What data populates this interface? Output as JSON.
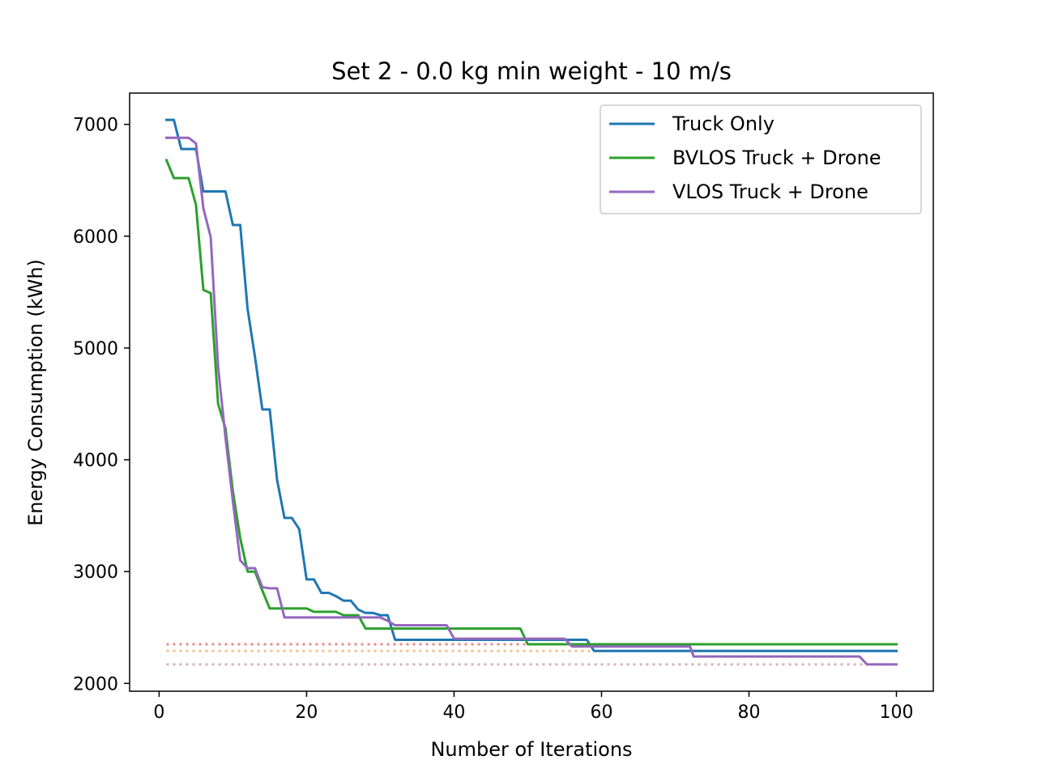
{
  "chart_data": {
    "type": "line",
    "title": "Set 2 - 0.0 kg min weight - 10 m/s",
    "xlabel": "Number of Iterations",
    "ylabel": "Energy Consumption (kWh)",
    "xlim": [
      -4,
      105
    ],
    "ylim": [
      1930,
      7280
    ],
    "xticks": [
      0,
      20,
      40,
      60,
      80,
      100
    ],
    "yticks": [
      2000,
      3000,
      4000,
      5000,
      6000,
      7000
    ],
    "legend_position": "top-right",
    "series": [
      {
        "name": "Truck Only",
        "color": "#1f77b4",
        "points": [
          [
            1,
            7040
          ],
          [
            2,
            7040
          ],
          [
            3,
            6780
          ],
          [
            4,
            6780
          ],
          [
            5,
            6780
          ],
          [
            6,
            6400
          ],
          [
            7,
            6400
          ],
          [
            8,
            6400
          ],
          [
            9,
            6400
          ],
          [
            10,
            6100
          ],
          [
            11,
            6100
          ],
          [
            12,
            5350
          ],
          [
            13,
            4920
          ],
          [
            14,
            4450
          ],
          [
            15,
            4450
          ],
          [
            16,
            3820
          ],
          [
            17,
            3480
          ],
          [
            18,
            3480
          ],
          [
            19,
            3380
          ],
          [
            20,
            2930
          ],
          [
            21,
            2930
          ],
          [
            22,
            2810
          ],
          [
            23,
            2810
          ],
          [
            24,
            2780
          ],
          [
            25,
            2740
          ],
          [
            26,
            2740
          ],
          [
            27,
            2660
          ],
          [
            28,
            2630
          ],
          [
            29,
            2630
          ],
          [
            30,
            2610
          ],
          [
            31,
            2610
          ],
          [
            32,
            2390
          ],
          [
            40,
            2390
          ],
          [
            58,
            2390
          ],
          [
            59,
            2290
          ],
          [
            100,
            2290
          ]
        ]
      },
      {
        "name": "BVLOS Truck + Drone",
        "color": "#2ca02c",
        "points": [
          [
            1,
            6680
          ],
          [
            2,
            6520
          ],
          [
            3,
            6520
          ],
          [
            4,
            6520
          ],
          [
            5,
            6280
          ],
          [
            6,
            5520
          ],
          [
            7,
            5490
          ],
          [
            8,
            4500
          ],
          [
            9,
            4280
          ],
          [
            10,
            3720
          ],
          [
            11,
            3300
          ],
          [
            12,
            3000
          ],
          [
            13,
            3000
          ],
          [
            14,
            2830
          ],
          [
            15,
            2670
          ],
          [
            16,
            2670
          ],
          [
            17,
            2670
          ],
          [
            18,
            2670
          ],
          [
            19,
            2670
          ],
          [
            20,
            2670
          ],
          [
            21,
            2640
          ],
          [
            22,
            2640
          ],
          [
            23,
            2640
          ],
          [
            24,
            2640
          ],
          [
            25,
            2610
          ],
          [
            26,
            2610
          ],
          [
            27,
            2610
          ],
          [
            28,
            2490
          ],
          [
            29,
            2490
          ],
          [
            39,
            2490
          ],
          [
            49,
            2490
          ],
          [
            50,
            2350
          ],
          [
            100,
            2350
          ]
        ]
      },
      {
        "name": "VLOS Truck + Drone",
        "color": "#9467bd",
        "points": [
          [
            1,
            6880
          ],
          [
            2,
            6880
          ],
          [
            3,
            6880
          ],
          [
            4,
            6880
          ],
          [
            5,
            6830
          ],
          [
            6,
            6250
          ],
          [
            7,
            5990
          ],
          [
            8,
            4830
          ],
          [
            9,
            4200
          ],
          [
            10,
            3630
          ],
          [
            11,
            3100
          ],
          [
            12,
            3030
          ],
          [
            13,
            3030
          ],
          [
            14,
            2860
          ],
          [
            15,
            2850
          ],
          [
            16,
            2850
          ],
          [
            17,
            2590
          ],
          [
            18,
            2590
          ],
          [
            27,
            2590
          ],
          [
            30,
            2590
          ],
          [
            31,
            2560
          ],
          [
            32,
            2520
          ],
          [
            39,
            2520
          ],
          [
            40,
            2400
          ],
          [
            55,
            2400
          ],
          [
            56,
            2330
          ],
          [
            72,
            2330
          ],
          [
            72.5,
            2240
          ],
          [
            95,
            2240
          ],
          [
            96,
            2170
          ],
          [
            100,
            2170
          ]
        ]
      }
    ],
    "reference_lines": [
      {
        "value": 2350,
        "color": "#e88b8b",
        "style": "dotted"
      },
      {
        "value": 2290,
        "color": "#f6c08a",
        "style": "dotted"
      },
      {
        "value": 2170,
        "color": "#d7b1b8",
        "style": "dotted"
      }
    ],
    "reference_x_range": [
      1,
      100
    ]
  }
}
